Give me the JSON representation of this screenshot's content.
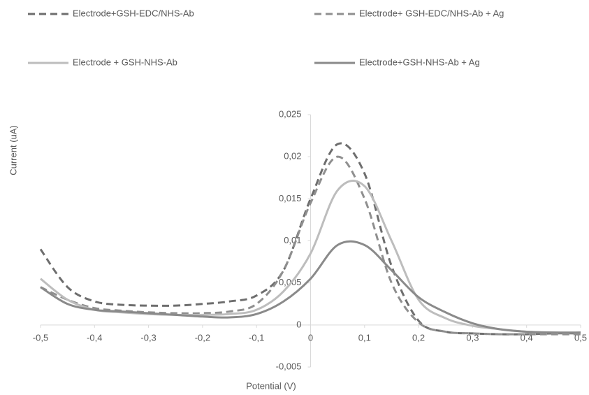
{
  "chart_data": {
    "type": "line",
    "x_label": "Potential (V)",
    "y_label": "Current (uA)",
    "x": [
      -0.5,
      -0.45,
      -0.4,
      -0.35,
      -0.3,
      -0.25,
      -0.2,
      -0.15,
      -0.1,
      -0.05,
      0,
      0.05,
      0.1,
      0.15,
      0.2,
      0.25,
      0.3,
      0.35,
      0.4,
      0.45,
      0.5
    ],
    "series": [
      {
        "name": "Electrode+GSH-EDC/NHS-Ab",
        "color": "#6e6e6e",
        "dashed": true,
        "values": [
          0.009,
          0.0045,
          0.0028,
          0.0024,
          0.0023,
          0.0023,
          0.0025,
          0.0028,
          0.0035,
          0.0065,
          0.015,
          0.0215,
          0.018,
          0.007,
          0.0005,
          -0.0008,
          -0.001,
          -0.0011,
          -0.0011,
          -0.001,
          -0.001
        ]
      },
      {
        "name": "Electrode+ GSH-EDC/NHS-Ab + Ag",
        "color": "#8f8f8f",
        "dashed": true,
        "values": [
          0.0045,
          0.003,
          0.002,
          0.0017,
          0.0015,
          0.0014,
          0.0014,
          0.0016,
          0.0025,
          0.0065,
          0.0145,
          0.02,
          0.015,
          0.005,
          0.0003,
          -0.0008,
          -0.001,
          -0.0011,
          -0.0011,
          -0.0011,
          -0.0011
        ]
      },
      {
        "name": "Electrode + GSH-NHS-Ab",
        "color": "#bdbdbd",
        "dashed": false,
        "values": [
          0.0055,
          0.003,
          0.0018,
          0.0015,
          0.0013,
          0.0012,
          0.0012,
          0.0013,
          0.0018,
          0.004,
          0.0085,
          0.016,
          0.0165,
          0.01,
          0.003,
          0.0008,
          -0.0001,
          -0.0005,
          -0.0008,
          -0.0009,
          -0.0009
        ]
      },
      {
        "name": "Electrode+GSH-NHS-Ab + Ag",
        "color": "#8a8a8a",
        "dashed": false,
        "values": [
          0.0045,
          0.0025,
          0.0018,
          0.0016,
          0.0014,
          0.0012,
          0.001,
          0.0009,
          0.0013,
          0.0028,
          0.0055,
          0.0095,
          0.0095,
          0.0065,
          0.0033,
          0.0015,
          0.0002,
          -0.0005,
          -0.0008,
          -0.0009,
          -0.0009
        ]
      }
    ],
    "xlim": [
      -0.5,
      0.5
    ],
    "xticks": [
      {
        "value": -0.5,
        "label": "-0,5"
      },
      {
        "value": -0.4,
        "label": "-0,4"
      },
      {
        "value": -0.3,
        "label": "-0,3"
      },
      {
        "value": -0.2,
        "label": "-0,2"
      },
      {
        "value": -0.1,
        "label": "-0,1"
      },
      0,
      {
        "value": 0.1,
        "label": "0,1"
      },
      {
        "value": 0.2,
        "label": "0,2"
      },
      {
        "value": 0.3,
        "label": "0,3"
      },
      {
        "value": 0.4,
        "label": "0,4"
      },
      {
        "value": 0.5,
        "label": "0,5"
      }
    ],
    "ylim": [
      -0.005,
      0.025
    ],
    "yticks": [
      {
        "value": -0.005,
        "label": "-0,005"
      },
      0,
      {
        "value": 0.005,
        "label": "0,005"
      },
      {
        "value": 0.01,
        "label": "0,01"
      },
      {
        "value": 0.015,
        "label": "0,015"
      },
      {
        "value": 0.02,
        "label": "0,02"
      },
      {
        "value": 0.025,
        "label": "0,025"
      }
    ],
    "grid": false
  }
}
